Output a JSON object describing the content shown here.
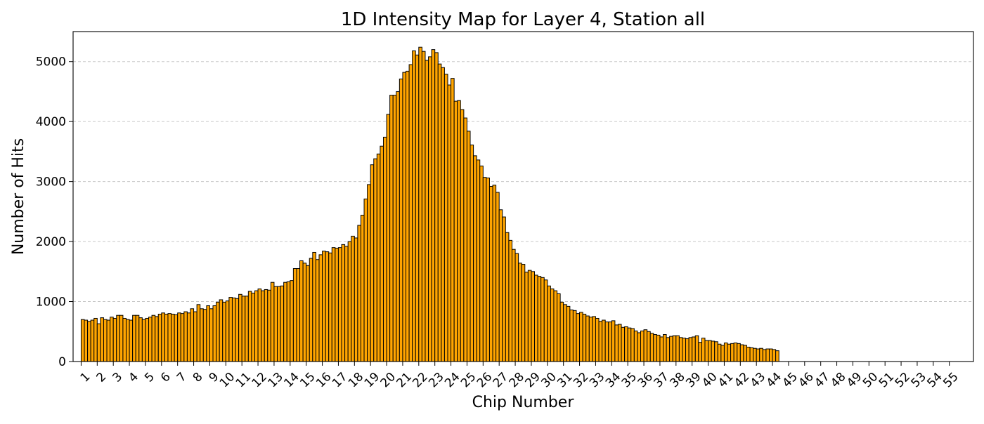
{
  "chart_data": {
    "type": "bar",
    "title": "1D Intensity Map for Layer 4, Station all",
    "xlabel": "Chip Number",
    "ylabel": "Number of Hits",
    "ylim": [
      0,
      5500
    ],
    "xlim": [
      -0.5,
      55.5
    ],
    "x_tick_labels": [
      "1",
      "2",
      "3",
      "4",
      "5",
      "6",
      "7",
      "8",
      "9",
      "10",
      "11",
      "12",
      "13",
      "14",
      "15",
      "16",
      "17",
      "18",
      "19",
      "20",
      "21",
      "22",
      "23",
      "24",
      "25",
      "26",
      "27",
      "28",
      "29",
      "30",
      "31",
      "32",
      "33",
      "34",
      "35",
      "36",
      "37",
      "38",
      "39",
      "40",
      "41",
      "42",
      "43",
      "44",
      "45",
      "46",
      "47",
      "48",
      "49",
      "50",
      "51",
      "52",
      "53",
      "54",
      "55"
    ],
    "y_ticks": [
      0,
      1000,
      2000,
      3000,
      4000,
      5000
    ],
    "y_tick_labels": [
      "0",
      "1000",
      "2000",
      "3000",
      "4000",
      "5000"
    ],
    "grid": "y-dashed",
    "bar_color": "#FFA500",
    "edge_color": "#000000",
    "bins_per_chip": 5,
    "values": [
      700,
      690,
      670,
      690,
      720,
      630,
      730,
      700,
      690,
      740,
      720,
      770,
      770,
      720,
      700,
      690,
      770,
      770,
      730,
      700,
      720,
      740,
      770,
      750,
      790,
      810,
      790,
      800,
      790,
      780,
      810,
      800,
      830,
      810,
      880,
      830,
      950,
      880,
      870,
      930,
      880,
      930,
      990,
      1030,
      990,
      1010,
      1070,
      1060,
      1050,
      1120,
      1090,
      1090,
      1170,
      1140,
      1180,
      1210,
      1180,
      1200,
      1190,
      1320,
      1250,
      1250,
      1260,
      1320,
      1330,
      1350,
      1550,
      1550,
      1680,
      1640,
      1600,
      1720,
      1820,
      1700,
      1780,
      1840,
      1830,
      1810,
      1900,
      1890,
      1900,
      1950,
      1920,
      2000,
      2090,
      2060,
      2270,
      2440,
      2710,
      2950,
      3280,
      3380,
      3460,
      3590,
      3740,
      4120,
      4440,
      4440,
      4500,
      4710,
      4820,
      4840,
      4950,
      5180,
      5110,
      5240,
      5170,
      5020,
      5080,
      5200,
      5150,
      4960,
      4900,
      4790,
      4610,
      4720,
      4340,
      4350,
      4200,
      4060,
      3840,
      3610,
      3430,
      3360,
      3260,
      3070,
      3060,
      2920,
      2940,
      2820,
      2530,
      2410,
      2150,
      2020,
      1870,
      1800,
      1640,
      1620,
      1490,
      1520,
      1500,
      1440,
      1420,
      1400,
      1360,
      1260,
      1210,
      1180,
      1130,
      990,
      950,
      920,
      860,
      850,
      800,
      820,
      790,
      760,
      740,
      750,
      720,
      670,
      690,
      660,
      660,
      680,
      610,
      620,
      570,
      580,
      560,
      550,
      510,
      480,
      510,
      530,
      500,
      470,
      450,
      440,
      410,
      450,
      400,
      420,
      430,
      430,
      400,
      390,
      380,
      400,
      410,
      430,
      320,
      390,
      350,
      350,
      340,
      330,
      290,
      270,
      310,
      290,
      300,
      310,
      300,
      280,
      270,
      240,
      230,
      220,
      210,
      220,
      200,
      210,
      210,
      200,
      180
    ]
  }
}
